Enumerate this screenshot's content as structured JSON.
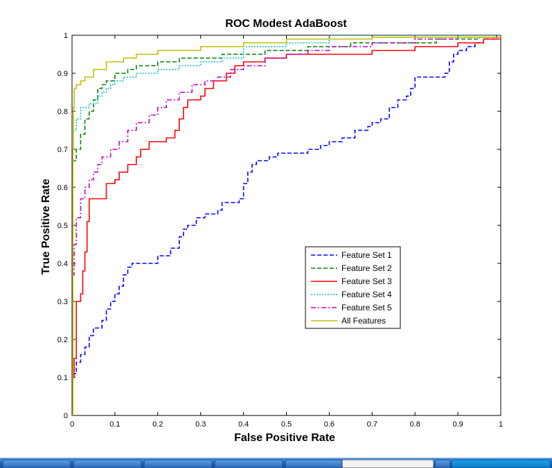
{
  "chart_data": {
    "type": "line",
    "title": "ROC Modest AdaBoost",
    "xlabel": "False Positive Rate",
    "ylabel": "True Positive Rate",
    "xlim": [
      0,
      1
    ],
    "ylim": [
      0,
      1
    ],
    "grid": false,
    "legend_position": "center-right",
    "x_ticks": [
      "0",
      "0.1",
      "0.2",
      "0.3",
      "0.4",
      "0.5",
      "0.6",
      "0.7",
      "0.8",
      "0.9",
      "1"
    ],
    "y_ticks": [
      "0",
      "0.1",
      "0.2",
      "0.3",
      "0.4",
      "0.5",
      "0.6",
      "0.7",
      "0.8",
      "0.9",
      "1"
    ],
    "series": [
      {
        "name": "Feature Set 1",
        "color": "#0000ff",
        "style": "dashed",
        "points": [
          [
            0,
            0.11
          ],
          [
            0.01,
            0.14
          ],
          [
            0.02,
            0.16
          ],
          [
            0.03,
            0.18
          ],
          [
            0.04,
            0.21
          ],
          [
            0.05,
            0.23
          ],
          [
            0.07,
            0.25
          ],
          [
            0.08,
            0.28
          ],
          [
            0.09,
            0.3
          ],
          [
            0.1,
            0.32
          ],
          [
            0.11,
            0.34
          ],
          [
            0.12,
            0.37
          ],
          [
            0.13,
            0.39
          ],
          [
            0.14,
            0.4
          ],
          [
            0.17,
            0.4
          ],
          [
            0.2,
            0.42
          ],
          [
            0.23,
            0.44
          ],
          [
            0.25,
            0.47
          ],
          [
            0.26,
            0.49
          ],
          [
            0.27,
            0.5
          ],
          [
            0.29,
            0.52
          ],
          [
            0.31,
            0.53
          ],
          [
            0.34,
            0.54
          ],
          [
            0.35,
            0.56
          ],
          [
            0.39,
            0.57
          ],
          [
            0.4,
            0.61
          ],
          [
            0.41,
            0.64
          ],
          [
            0.42,
            0.66
          ],
          [
            0.43,
            0.67
          ],
          [
            0.46,
            0.68
          ],
          [
            0.48,
            0.69
          ],
          [
            0.52,
            0.69
          ],
          [
            0.55,
            0.7
          ],
          [
            0.58,
            0.71
          ],
          [
            0.6,
            0.72
          ],
          [
            0.63,
            0.73
          ],
          [
            0.66,
            0.75
          ],
          [
            0.69,
            0.76
          ],
          [
            0.7,
            0.77
          ],
          [
            0.72,
            0.78
          ],
          [
            0.74,
            0.81
          ],
          [
            0.76,
            0.83
          ],
          [
            0.78,
            0.84
          ],
          [
            0.79,
            0.86
          ],
          [
            0.8,
            0.89
          ],
          [
            0.85,
            0.89
          ],
          [
            0.87,
            0.9
          ],
          [
            0.88,
            0.93
          ],
          [
            0.89,
            0.95
          ],
          [
            0.9,
            0.96
          ],
          [
            0.92,
            0.97
          ],
          [
            0.94,
            0.98
          ],
          [
            0.96,
            0.99
          ],
          [
            0.99,
            1
          ],
          [
            1,
            1
          ]
        ]
      },
      {
        "name": "Feature Set 2",
        "color": "#008000",
        "style": "dashed",
        "points": [
          [
            0,
            0.67
          ],
          [
            0.01,
            0.7
          ],
          [
            0.02,
            0.74
          ],
          [
            0.03,
            0.78
          ],
          [
            0.04,
            0.8
          ],
          [
            0.05,
            0.83
          ],
          [
            0.06,
            0.86
          ],
          [
            0.07,
            0.87
          ],
          [
            0.08,
            0.88
          ],
          [
            0.1,
            0.9
          ],
          [
            0.13,
            0.91
          ],
          [
            0.15,
            0.92
          ],
          [
            0.2,
            0.93
          ],
          [
            0.25,
            0.94
          ],
          [
            0.35,
            0.95
          ],
          [
            0.45,
            0.96
          ],
          [
            0.55,
            0.97
          ],
          [
            0.65,
            0.98
          ],
          [
            0.75,
            0.98
          ],
          [
            0.85,
            0.99
          ],
          [
            0.95,
            0.995
          ],
          [
            1,
            1
          ]
        ]
      },
      {
        "name": "Feature Set 3",
        "color": "#ff0000",
        "style": "solid",
        "points": [
          [
            0,
            0.1
          ],
          [
            0.005,
            0.15
          ],
          [
            0.01,
            0.3
          ],
          [
            0.02,
            0.32
          ],
          [
            0.025,
            0.38
          ],
          [
            0.03,
            0.43
          ],
          [
            0.035,
            0.51
          ],
          [
            0.04,
            0.57
          ],
          [
            0.07,
            0.57
          ],
          [
            0.08,
            0.61
          ],
          [
            0.1,
            0.62
          ],
          [
            0.11,
            0.64
          ],
          [
            0.13,
            0.66
          ],
          [
            0.15,
            0.68
          ],
          [
            0.16,
            0.7
          ],
          [
            0.18,
            0.72
          ],
          [
            0.22,
            0.73
          ],
          [
            0.24,
            0.75
          ],
          [
            0.25,
            0.78
          ],
          [
            0.26,
            0.81
          ],
          [
            0.27,
            0.83
          ],
          [
            0.3,
            0.84
          ],
          [
            0.31,
            0.86
          ],
          [
            0.33,
            0.88
          ],
          [
            0.36,
            0.9
          ],
          [
            0.38,
            0.92
          ],
          [
            0.4,
            0.93
          ],
          [
            0.45,
            0.94
          ],
          [
            0.5,
            0.95
          ],
          [
            0.6,
            0.95
          ],
          [
            0.7,
            0.96
          ],
          [
            0.8,
            0.97
          ],
          [
            0.9,
            0.98
          ],
          [
            0.96,
            0.99
          ],
          [
            1,
            1
          ]
        ]
      },
      {
        "name": "Feature Set 4",
        "color": "#00bfbf",
        "style": "dotted",
        "points": [
          [
            0,
            0.75
          ],
          [
            0.01,
            0.78
          ],
          [
            0.02,
            0.81
          ],
          [
            0.04,
            0.82
          ],
          [
            0.06,
            0.84
          ],
          [
            0.07,
            0.85
          ],
          [
            0.08,
            0.86
          ],
          [
            0.09,
            0.87
          ],
          [
            0.1,
            0.88
          ],
          [
            0.12,
            0.89
          ],
          [
            0.15,
            0.9
          ],
          [
            0.2,
            0.91
          ],
          [
            0.25,
            0.92
          ],
          [
            0.3,
            0.93
          ],
          [
            0.35,
            0.94
          ],
          [
            0.4,
            0.97
          ],
          [
            0.5,
            0.98
          ],
          [
            0.6,
            1
          ],
          [
            1,
            1
          ]
        ]
      },
      {
        "name": "Feature Set 5",
        "color": "#bf00bf",
        "style": "dashdot",
        "points": [
          [
            0,
            0.37
          ],
          [
            0.005,
            0.45
          ],
          [
            0.01,
            0.52
          ],
          [
            0.02,
            0.57
          ],
          [
            0.03,
            0.6
          ],
          [
            0.04,
            0.62
          ],
          [
            0.05,
            0.64
          ],
          [
            0.06,
            0.66
          ],
          [
            0.07,
            0.68
          ],
          [
            0.09,
            0.7
          ],
          [
            0.11,
            0.72
          ],
          [
            0.13,
            0.75
          ],
          [
            0.15,
            0.77
          ],
          [
            0.18,
            0.79
          ],
          [
            0.2,
            0.81
          ],
          [
            0.22,
            0.83
          ],
          [
            0.25,
            0.85
          ],
          [
            0.28,
            0.87
          ],
          [
            0.31,
            0.88
          ],
          [
            0.34,
            0.89
          ],
          [
            0.37,
            0.91
          ],
          [
            0.4,
            0.92
          ],
          [
            0.45,
            0.94
          ],
          [
            0.5,
            0.95
          ],
          [
            0.55,
            0.96
          ],
          [
            0.6,
            0.97
          ],
          [
            0.7,
            0.98
          ],
          [
            0.8,
            0.99
          ],
          [
            0.9,
            0.995
          ],
          [
            1,
            1
          ]
        ]
      },
      {
        "name": "All Features",
        "color": "#bfbf00",
        "style": "solid",
        "points": [
          [
            0,
            0
          ],
          [
            0.002,
            0.7
          ],
          [
            0.003,
            0.81
          ],
          [
            0.005,
            0.86
          ],
          [
            0.01,
            0.87
          ],
          [
            0.02,
            0.88
          ],
          [
            0.03,
            0.89
          ],
          [
            0.05,
            0.91
          ],
          [
            0.08,
            0.93
          ],
          [
            0.12,
            0.94
          ],
          [
            0.15,
            0.95
          ],
          [
            0.2,
            0.96
          ],
          [
            0.3,
            0.97
          ],
          [
            0.4,
            0.98
          ],
          [
            0.5,
            0.99
          ],
          [
            0.7,
            0.995
          ],
          [
            1,
            1
          ]
        ]
      }
    ]
  },
  "colors": {
    "axes_border": "#000000",
    "background": "#ffffff"
  }
}
